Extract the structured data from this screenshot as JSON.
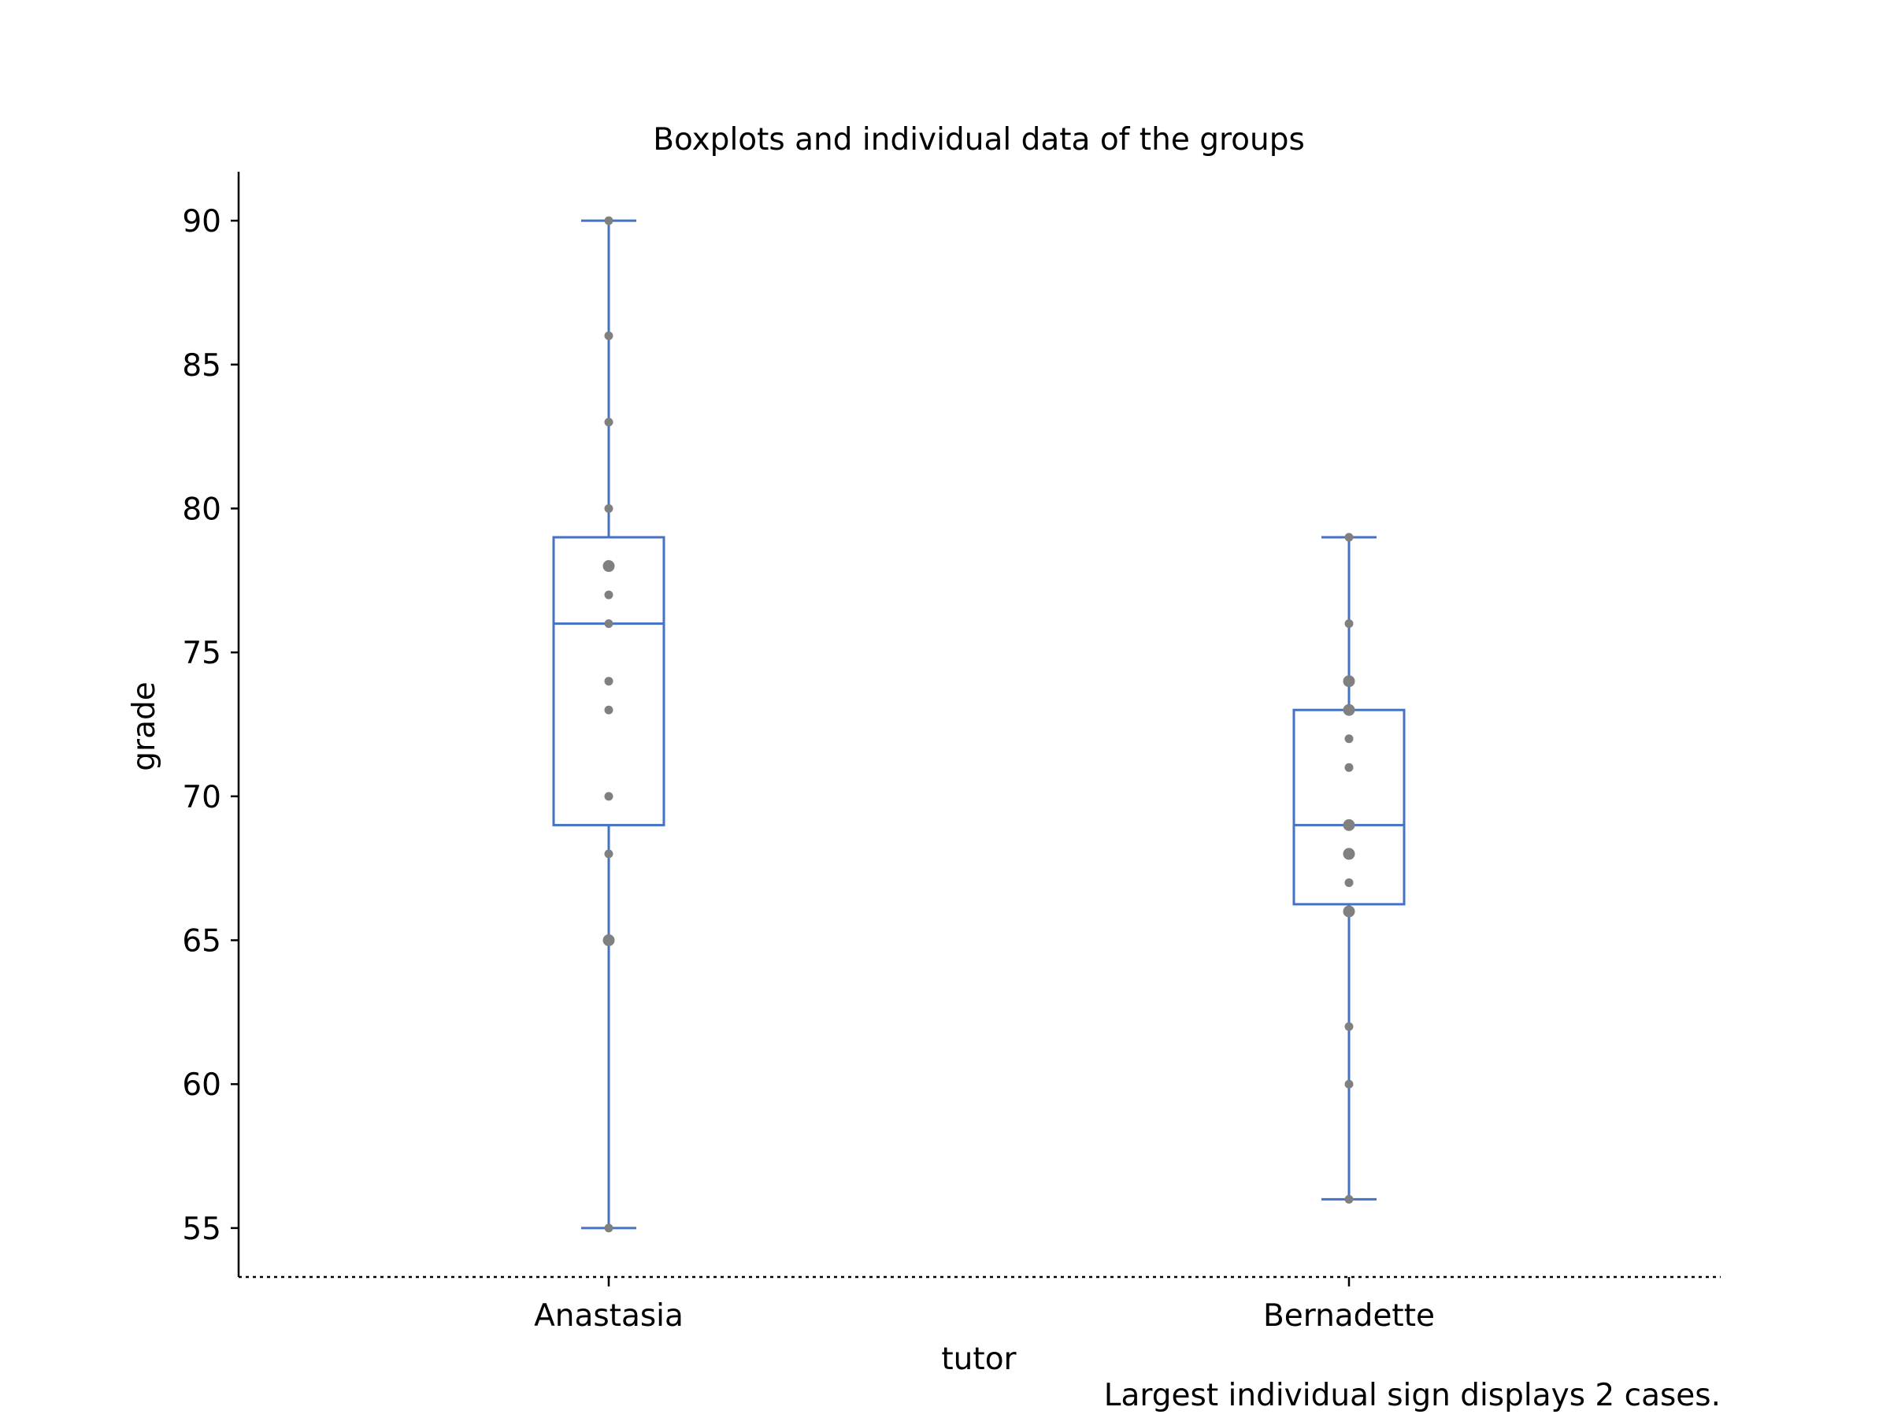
{
  "chart_data": {
    "type": "box",
    "title": "Boxplots and individual data of the groups",
    "xlabel": "tutor",
    "ylabel": "grade",
    "ylim": [
      53.3,
      91.7
    ],
    "yticks": [
      55,
      60,
      65,
      70,
      75,
      80,
      85,
      90
    ],
    "categories": [
      "Anastasia",
      "Bernadette"
    ],
    "boxes": [
      {
        "category": "Anastasia",
        "whisker_low": 55,
        "q1": 69,
        "median": 76,
        "q3": 79,
        "whisker_high": 90
      },
      {
        "category": "Bernadette",
        "whisker_low": 56,
        "q1": 66.25,
        "median": 69,
        "q3": 73,
        "whisker_high": 79
      }
    ],
    "points": [
      [
        {
          "y": 90,
          "count": 1
        },
        {
          "y": 86,
          "count": 1
        },
        {
          "y": 83,
          "count": 1
        },
        {
          "y": 80,
          "count": 1
        },
        {
          "y": 78,
          "count": 2
        },
        {
          "y": 77,
          "count": 1
        },
        {
          "y": 76,
          "count": 1
        },
        {
          "y": 74,
          "count": 1
        },
        {
          "y": 73,
          "count": 1
        },
        {
          "y": 70,
          "count": 1
        },
        {
          "y": 68,
          "count": 1
        },
        {
          "y": 65,
          "count": 2
        },
        {
          "y": 55,
          "count": 1
        }
      ],
      [
        {
          "y": 79,
          "count": 1
        },
        {
          "y": 76,
          "count": 1
        },
        {
          "y": 74,
          "count": 2
        },
        {
          "y": 73,
          "count": 2
        },
        {
          "y": 72,
          "count": 1
        },
        {
          "y": 71,
          "count": 1
        },
        {
          "y": 69,
          "count": 2
        },
        {
          "y": 68,
          "count": 2
        },
        {
          "y": 67,
          "count": 1
        },
        {
          "y": 66,
          "count": 2
        },
        {
          "y": 62,
          "count": 1
        },
        {
          "y": 60,
          "count": 1
        },
        {
          "y": 56,
          "count": 1
        }
      ]
    ],
    "box_color": "#4472c4",
    "point_color": "#808080",
    "note": "Largest individual sign displays 2 cases."
  }
}
